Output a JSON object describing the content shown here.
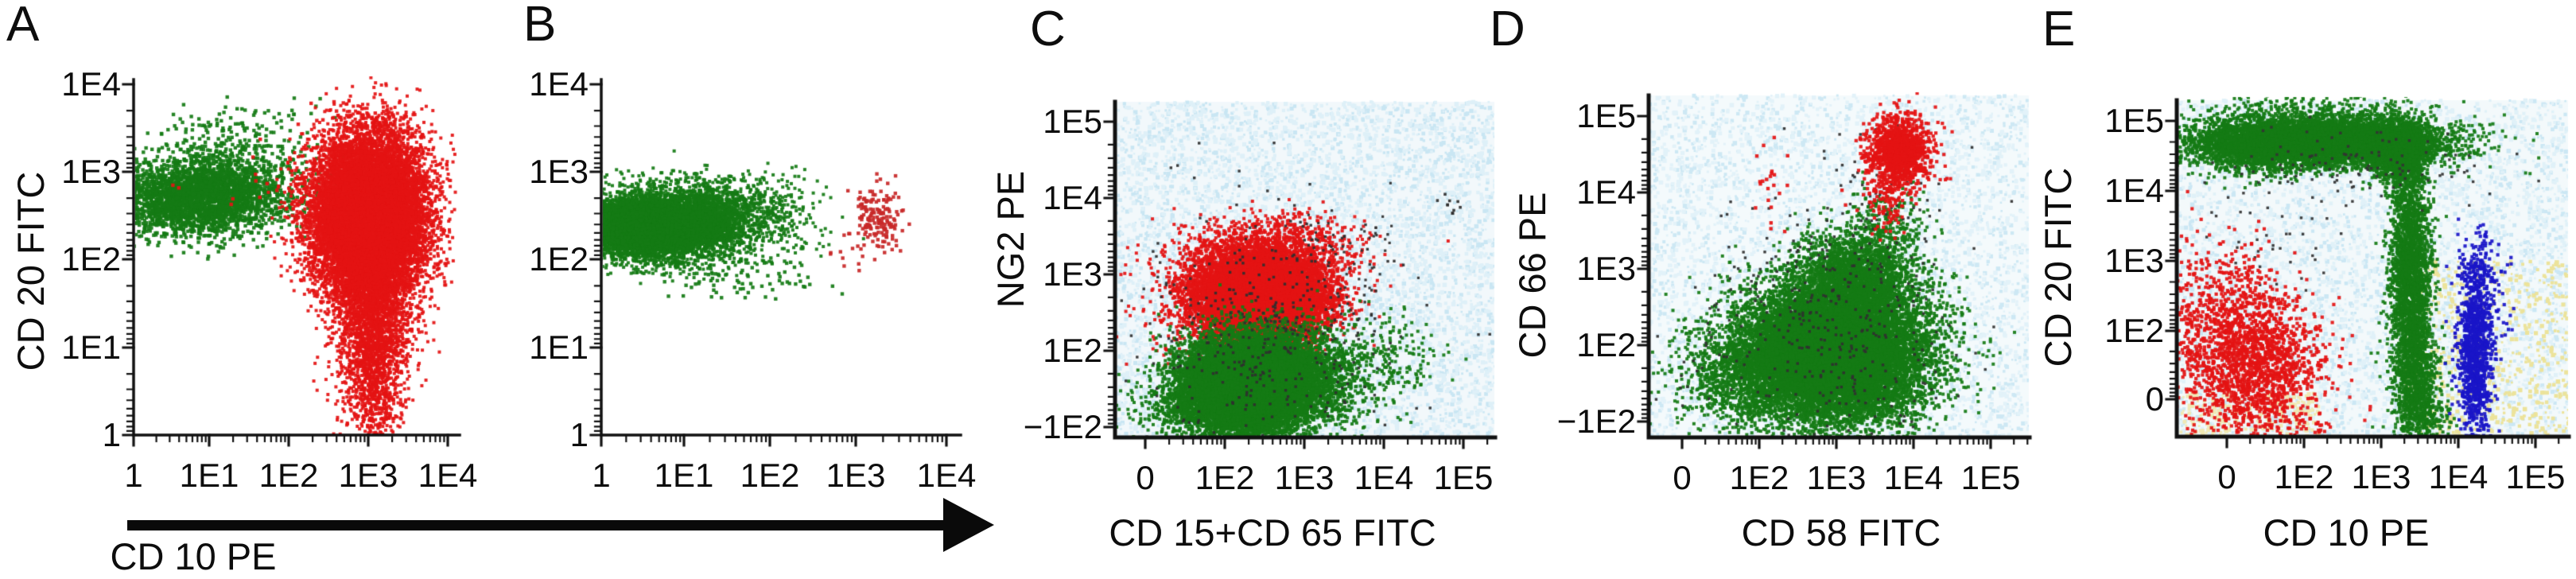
{
  "arrow": {
    "label": "CD 10 PE"
  },
  "chart_data": [
    {
      "type": "scatter",
      "panel_label": "A",
      "xlabel": "CD 10 PE",
      "ylabel": "CD 20 FITC",
      "x_ticks": [
        "1",
        "1E1",
        "1E2",
        "1E3",
        "1E4"
      ],
      "y_ticks": [
        "1E4",
        "1E3",
        "1E2",
        "1E1",
        "1"
      ],
      "xlim": [
        "1",
        "1E4"
      ],
      "ylim": [
        "1",
        "1E4"
      ],
      "x_scale": "log",
      "y_scale": "log",
      "cluster_model": "gaussian clusters; cx,cy in axis tick-index units (0 = first tick), sx,sy = std dev",
      "series": [
        {
          "name": "green-population",
          "color": "#157b15",
          "clusters": [
            {
              "n": 2600,
              "cx": 0.8,
              "cy": 2.68,
              "sx": 0.55,
              "sy": 0.2,
              "r": 2.2
            },
            {
              "n": 700,
              "cx": 1.1,
              "cy": 2.95,
              "sx": 0.55,
              "sy": 0.2,
              "r": 2.2
            },
            {
              "n": 120,
              "cx": 1.3,
              "cy": 3.45,
              "sx": 0.5,
              "sy": 0.18,
              "r": 2.2
            }
          ]
        },
        {
          "name": "red-population",
          "color": "#e41414",
          "clusters": [
            {
              "n": 14000,
              "cx": 3.0,
              "cy": 2.5,
              "sx": 0.36,
              "sy": 0.45,
              "r": 2.0
            },
            {
              "n": 2500,
              "cx": 3.05,
              "cy": 1.4,
              "sx": 0.24,
              "sy": 0.55,
              "r": 2.0
            },
            {
              "n": 400,
              "cx": 3.05,
              "cy": 0.45,
              "sx": 0.18,
              "sy": 0.35,
              "r": 2.0
            },
            {
              "n": 200,
              "cx": 2.55,
              "cy": 2.7,
              "sx": 0.25,
              "sy": 0.35,
              "r": 2.0
            },
            {
              "n": 60,
              "cx": 3.0,
              "cy": 3.5,
              "sx": 0.4,
              "sy": 0.15,
              "r": 2.2
            },
            {
              "n": 12,
              "cx": 1.5,
              "cy": 2.9,
              "sx": 0.6,
              "sy": 0.3,
              "r": 2.2
            }
          ]
        }
      ]
    },
    {
      "type": "scatter",
      "panel_label": "B",
      "xlabel": "CD 10 PE",
      "ylabel": "CD 20 FITC",
      "x_ticks": [
        "1",
        "1E1",
        "1E2",
        "1E3",
        "1E4"
      ],
      "y_ticks": [
        "1E4",
        "1E3",
        "1E2",
        "1E1",
        "1"
      ],
      "xlim": [
        "1",
        "1E4"
      ],
      "ylim": [
        "1",
        "1E4"
      ],
      "x_scale": "log",
      "y_scale": "log",
      "series": [
        {
          "name": "green-population",
          "color": "#157b15",
          "clusters": [
            {
              "n": 10000,
              "cx": 0.55,
              "cy": 2.4,
              "sx": 0.4,
              "sy": 0.13,
              "r": 2.0
            },
            {
              "n": 2200,
              "cx": 1.1,
              "cy": 2.52,
              "sx": 0.6,
              "sy": 0.22,
              "r": 2.0
            },
            {
              "n": 700,
              "cx": 0.75,
              "cy": 2.12,
              "sx": 0.5,
              "sy": 0.14,
              "r": 2.0
            },
            {
              "n": 80,
              "cx": 1.6,
              "cy": 1.78,
              "sx": 0.45,
              "sy": 0.12,
              "r": 2.2
            }
          ]
        },
        {
          "name": "red-population",
          "color": "#c82828",
          "clusters": [
            {
              "n": 160,
              "cx": 3.2,
              "cy": 2.5,
              "sx": 0.15,
              "sy": 0.18,
              "r": 2.2
            },
            {
              "n": 18,
              "cx": 3.0,
              "cy": 2.15,
              "sx": 0.22,
              "sy": 0.15,
              "r": 2.2
            }
          ]
        }
      ]
    },
    {
      "type": "scatter",
      "panel_label": "C",
      "xlabel": "CD 15+CD 65 FITC",
      "ylabel": "NG2 PE",
      "x_ticks": [
        "0",
        "1E2",
        "1E3",
        "1E4",
        "1E5"
      ],
      "y_ticks": [
        "1E5",
        "1E4",
        "1E3",
        "1E2",
        "−1E2"
      ],
      "xlim": [
        "0",
        "1E5"
      ],
      "ylim": [
        "-1E2",
        "1E5"
      ],
      "x_scale": "biexponential",
      "y_scale": "biexponential",
      "series": [
        {
          "name": "red-population",
          "color": "#e41414",
          "clusters": [
            {
              "n": 11000,
              "cx": 1.45,
              "cy": 1.7,
              "sx": 0.4,
              "sy": 0.27,
              "r": 2.0
            },
            {
              "n": 1500,
              "cx": 1.55,
              "cy": 2.25,
              "sx": 0.55,
              "sy": 0.25,
              "r": 2.0
            },
            {
              "n": 250,
              "cx": 0.7,
              "cy": 1.5,
              "sx": 0.4,
              "sy": 0.35,
              "r": 2.0
            }
          ]
        },
        {
          "name": "green-population",
          "color": "#157b15",
          "clusters": [
            {
              "n": 13000,
              "cx": 1.35,
              "cy": 0.6,
              "sx": 0.42,
              "sy": 0.3,
              "r": 2.0
            },
            {
              "n": 2000,
              "cx": 1.05,
              "cy": 0.25,
              "sx": 0.5,
              "sy": 0.22,
              "r": 2.0
            },
            {
              "n": 700,
              "cx": 2.3,
              "cy": 0.7,
              "sx": 0.35,
              "sy": 0.35,
              "r": 2.0
            },
            {
              "n": 150,
              "cx": 3.2,
              "cy": 0.9,
              "sx": 0.25,
              "sy": 0.3,
              "r": 2.0
            }
          ]
        },
        {
          "name": "dark-speckle",
          "color": "#2f2f2f",
          "clusters": [
            {
              "n": 420,
              "cx": 1.6,
              "cy": 1.15,
              "sx": 0.85,
              "sy": 0.85,
              "r": 1.7
            },
            {
              "n": 40,
              "cx": 2.6,
              "cy": 2.3,
              "sx": 0.4,
              "sy": 0.3,
              "r": 1.6
            },
            {
              "n": 10,
              "cx": 3.85,
              "cy": 2.9,
              "sx": 0.12,
              "sy": 0.08,
              "r": 1.8
            }
          ]
        }
      ]
    },
    {
      "type": "scatter",
      "panel_label": "D",
      "xlabel": "CD 58 FITC",
      "ylabel": "CD 66 PE",
      "x_ticks": [
        "0",
        "1E2",
        "1E3",
        "1E4",
        "1E5"
      ],
      "y_ticks": [
        "1E5",
        "1E4",
        "1E3",
        "1E2",
        "−1E2"
      ],
      "xlim": [
        "0",
        "1E5"
      ],
      "ylim": [
        "-1E2",
        "1E5"
      ],
      "x_scale": "biexponential",
      "y_scale": "biexponential",
      "series": [
        {
          "name": "green-population",
          "color": "#157b15",
          "clusters": [
            {
              "n": 15000,
              "cx": 1.95,
              "cy": 0.9,
              "sx": 0.6,
              "sy": 0.45,
              "r": 2.0
            },
            {
              "n": 2200,
              "cx": 2.25,
              "cy": 1.9,
              "sx": 0.4,
              "sy": 0.3,
              "r": 2.0
            },
            {
              "n": 800,
              "cx": 0.75,
              "cy": 0.55,
              "sx": 0.45,
              "sy": 0.35,
              "r": 2.0
            },
            {
              "n": 250,
              "cx": 2.65,
              "cy": 2.55,
              "sx": 0.28,
              "sy": 0.28,
              "r": 2.0
            }
          ]
        },
        {
          "name": "dark-speckle",
          "color": "#303030",
          "clusters": [
            {
              "n": 380,
              "cx": 1.9,
              "cy": 1.25,
              "sx": 0.85,
              "sy": 0.8,
              "r": 1.7
            },
            {
              "n": 50,
              "cx": 2.6,
              "cy": 3.1,
              "sx": 0.35,
              "sy": 0.4,
              "r": 1.7
            }
          ]
        },
        {
          "name": "red-population",
          "color": "#e41414",
          "clusters": [
            {
              "n": 1300,
              "cx": 2.82,
              "cy": 3.55,
              "sx": 0.2,
              "sy": 0.22,
              "r": 2.1
            },
            {
              "n": 130,
              "cx": 2.68,
              "cy": 3.0,
              "sx": 0.13,
              "sy": 0.28,
              "r": 2.1
            },
            {
              "n": 22,
              "cx": 1.2,
              "cy": 3.1,
              "sx": 0.12,
              "sy": 0.3,
              "r": 2.2
            },
            {
              "n": 8,
              "cx": 2.3,
              "cy": 2.85,
              "sx": 0.25,
              "sy": 0.12,
              "r": 2.2
            }
          ]
        }
      ]
    },
    {
      "type": "scatter",
      "panel_label": "E",
      "xlabel": "CD 10 PE",
      "ylabel": "CD 20 FITC",
      "x_ticks": [
        "0",
        "1E2",
        "1E3",
        "1E4",
        "1E5"
      ],
      "y_ticks": [
        "1E5",
        "1E4",
        "1E3",
        "1E2",
        "0"
      ],
      "xlim": [
        "0",
        "1E5"
      ],
      "ylim": [
        "0",
        "1E5"
      ],
      "x_scale": "biexponential",
      "y_scale": "biexponential",
      "series": [
        {
          "name": "green-population",
          "color": "#157b15",
          "clusters": [
            {
              "n": 3000,
              "cx": 1.55,
              "cy": 3.7,
              "sx": 0.65,
              "sy": 0.17,
              "r": 2.0
            },
            {
              "n": 2000,
              "cx": 0.5,
              "cy": 3.65,
              "sx": 0.55,
              "sy": 0.2,
              "r": 2.0
            },
            {
              "n": 2600,
              "cx": 1.2,
              "cy": 3.72,
              "sx": 0.9,
              "sy": 0.16,
              "r": 2.0
            },
            {
              "n": 1500,
              "cx": 2.2,
              "cy": 3.55,
              "sx": 0.18,
              "sy": 0.22,
              "r": 2.0
            },
            {
              "n": 2600,
              "cx": 2.38,
              "cy": 1.8,
              "sx": 0.13,
              "sy": 0.85,
              "r": 2.0
            },
            {
              "n": 900,
              "cx": 2.45,
              "cy": 0.2,
              "sx": 0.15,
              "sy": 0.45,
              "r": 2.0
            },
            {
              "n": 250,
              "cx": 1.0,
              "cy": 4.15,
              "sx": 0.8,
              "sy": 0.12,
              "r": 2.0
            },
            {
              "n": 120,
              "cx": 2.6,
              "cy": -0.3,
              "sx": 0.18,
              "sy": 0.15,
              "r": 2.0
            }
          ]
        },
        {
          "name": "dark-speckle",
          "color": "#333333",
          "clusters": [
            {
              "n": 120,
              "cx": 1.5,
              "cy": 3.3,
              "sx": 0.9,
              "sy": 0.25,
              "r": 1.7
            },
            {
              "n": 40,
              "cx": 0.6,
              "cy": 2.2,
              "sx": 0.5,
              "sy": 0.4,
              "r": 1.7
            }
          ]
        },
        {
          "name": "red-population",
          "color": "#e41414",
          "clusters": [
            {
              "n": 1700,
              "cx": 0.35,
              "cy": 0.5,
              "sx": 0.45,
              "sy": 0.5,
              "r": 2.1
            },
            {
              "n": 300,
              "cx": 0.05,
              "cy": 1.4,
              "sx": 0.3,
              "sy": 0.45,
              "r": 2.1
            },
            {
              "n": 130,
              "cx": -0.45,
              "cy": 1.1,
              "sx": 0.1,
              "sy": 0.9,
              "r": 2.1
            },
            {
              "n": 40,
              "cx": 0.8,
              "cy": -0.35,
              "sx": 0.4,
              "sy": 0.12,
              "r": 2.1
            }
          ]
        },
        {
          "name": "blue-population",
          "color": "#1a16c8",
          "clusters": [
            {
              "n": 1100,
              "cx": 3.22,
              "cy": 0.65,
              "sx": 0.11,
              "sy": 0.6,
              "r": 2.1
            },
            {
              "n": 160,
              "cx": 3.3,
              "cy": 1.75,
              "sx": 0.14,
              "sy": 0.35,
              "r": 2.1
            },
            {
              "n": 30,
              "cx": 3.45,
              "cy": 0.9,
              "sx": 0.12,
              "sy": 0.4,
              "r": 2.1
            }
          ]
        }
      ]
    }
  ]
}
